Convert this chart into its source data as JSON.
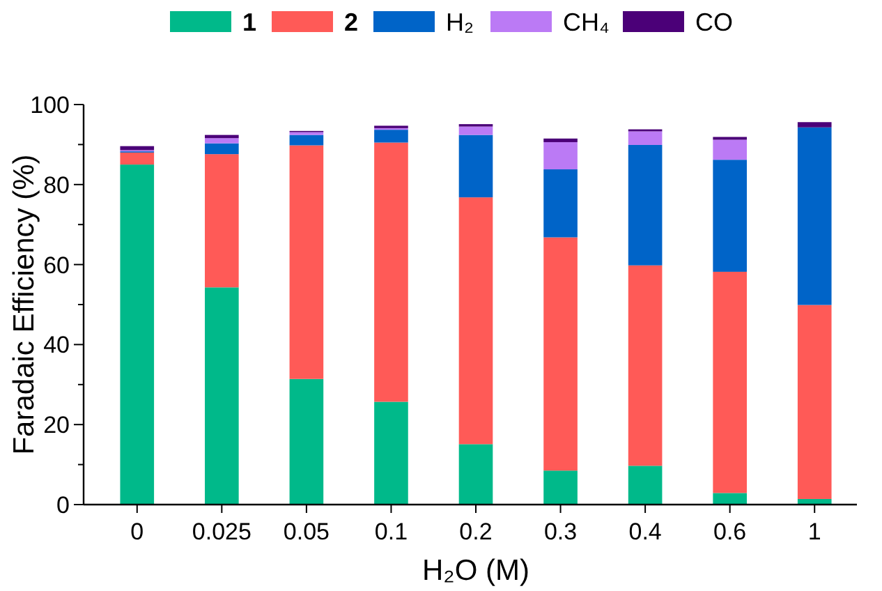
{
  "chart_data": {
    "type": "bar",
    "stacked": true,
    "xlabel": "H₂O (M)",
    "ylabel": "Faradaic Efficiency (%)",
    "categories": [
      "0",
      "0.025",
      "0.05",
      "0.1",
      "0.2",
      "0.3",
      "0.4",
      "0.6",
      "1"
    ],
    "ylim": [
      0,
      100
    ],
    "yticks": [
      0,
      {
        "value": 10,
        "label": null
      },
      20,
      {
        "value": 30,
        "label": null
      },
      40,
      {
        "value": 50,
        "label": null
      },
      60,
      {
        "value": 70,
        "label": null
      },
      80,
      {
        "value": 90,
        "label": null
      },
      100
    ],
    "legend": "top",
    "grid": false,
    "series": [
      {
        "name": "1",
        "color": "#00b98a",
        "values": [
          85.0,
          54.3,
          31.4,
          25.7,
          15.1,
          8.5,
          9.7,
          2.9,
          1.4
        ]
      },
      {
        "name": "2",
        "color": "#ff5a57",
        "values": [
          3.0,
          33.3,
          58.4,
          64.8,
          61.7,
          58.3,
          50.1,
          55.3,
          48.5
        ]
      },
      {
        "name": "H₂",
        "color": "#0064c8",
        "values": [
          0.3,
          2.7,
          2.6,
          3.2,
          15.6,
          17.0,
          30.1,
          28.0,
          44.4
        ]
      },
      {
        "name": "CH₄",
        "color": "#bb7af5",
        "values": [
          0.3,
          1.3,
          0.7,
          0.4,
          2.1,
          6.8,
          3.4,
          5.0,
          0
        ]
      },
      {
        "name": "CO",
        "color": "#4b0078",
        "values": [
          1.0,
          0.8,
          0.3,
          0.6,
          0.6,
          0.9,
          0.5,
          0.7,
          1.3
        ]
      }
    ]
  }
}
